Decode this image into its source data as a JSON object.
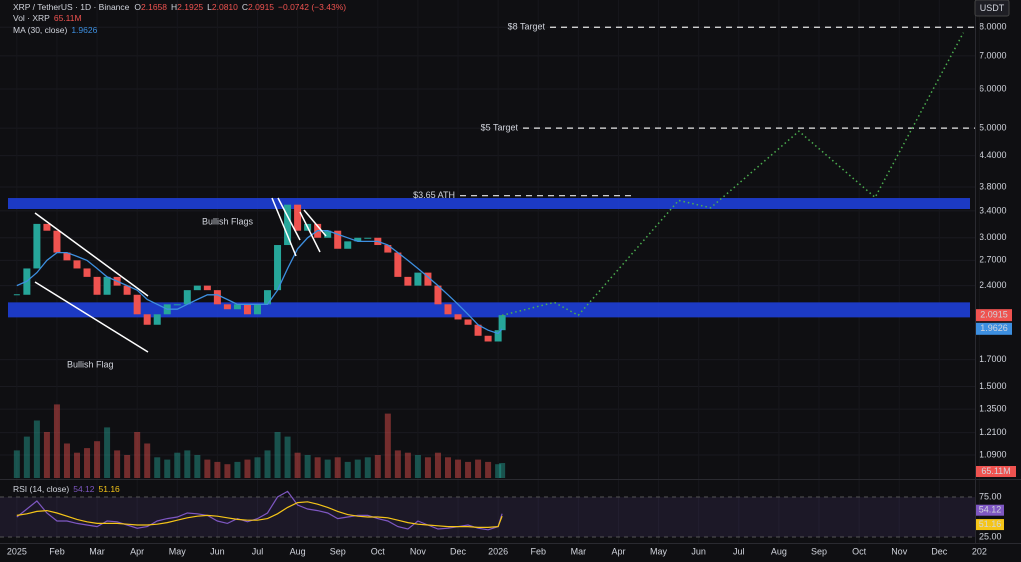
{
  "chart_data": {
    "type": "candlestick",
    "legend": {
      "symbol": "XRP / TetherUS · 1D · Binance",
      "ohlc": [
        {
          "key": "O",
          "text": "2.1658"
        },
        {
          "key": "H",
          "text": "2.1925"
        },
        {
          "key": "L",
          "text": "2.0810"
        },
        {
          "key": "C",
          "text": "2.0915"
        }
      ],
      "change": "−0.0742 (−3.43%)",
      "volume_label": "Vol · XRP",
      "volume_text": "65.11M",
      "ma_label": "MA (30, close)",
      "rsi_label": "RSI (14, close)"
    },
    "currency": "USDT",
    "yscale": "log",
    "ylim": [
      1,
      9
    ],
    "yticks": [
      {
        "value": 1.09,
        "label": "1.0900"
      },
      {
        "value": 1.21,
        "label": "1.2100"
      },
      {
        "value": 1.35,
        "label": "1.3500"
      },
      {
        "value": 1.5,
        "label": "1.5000"
      },
      {
        "value": 1.7,
        "label": "1.7000"
      },
      {
        "value": 2.4,
        "label": "2.4000"
      },
      {
        "value": 2.7,
        "label": "2.7000"
      },
      {
        "value": 3.0,
        "label": "3.0000"
      },
      {
        "value": 3.4,
        "label": "3.4000"
      },
      {
        "value": 3.8,
        "label": "3.8000"
      },
      {
        "value": 4.4,
        "label": "4.4000"
      },
      {
        "value": 5,
        "label": "5.0000"
      },
      {
        "value": 6,
        "label": "6.0000"
      },
      {
        "value": 7,
        "label": "7.0000"
      },
      {
        "value": 8,
        "label": "8.0000"
      }
    ],
    "xlim": [
      -0.42,
      23.89
    ],
    "xticks": [
      {
        "value": 0,
        "label": "2025"
      },
      {
        "value": 1,
        "label": "Feb"
      },
      {
        "value": 2,
        "label": "Mar"
      },
      {
        "value": 3,
        "label": "Apr"
      },
      {
        "value": 4,
        "label": "May"
      },
      {
        "value": 5,
        "label": "Jun"
      },
      {
        "value": 6,
        "label": "Jul"
      },
      {
        "value": 7,
        "label": "Aug"
      },
      {
        "value": 8,
        "label": "Sep"
      },
      {
        "value": 9,
        "label": "Oct"
      },
      {
        "value": 10,
        "label": "Nov"
      },
      {
        "value": 11,
        "label": "Dec"
      },
      {
        "value": 12,
        "label": "2026"
      },
      {
        "value": 13,
        "label": "Feb"
      },
      {
        "value": 14,
        "label": "Mar"
      },
      {
        "value": 15,
        "label": "Apr"
      },
      {
        "value": 16,
        "label": "May"
      },
      {
        "value": 17,
        "label": "Jun"
      },
      {
        "value": 18,
        "label": "Jul"
      },
      {
        "value": 19,
        "label": "Aug"
      },
      {
        "value": 20,
        "label": "Sep"
      },
      {
        "value": 21,
        "label": "Oct"
      },
      {
        "value": 22,
        "label": "Nov"
      },
      {
        "value": 23,
        "label": "Dec"
      },
      {
        "value": 24,
        "label": "202"
      }
    ],
    "x": [
      0,
      0.25,
      0.5,
      0.75,
      1,
      1.25,
      1.5,
      1.75,
      2,
      2.25,
      2.5,
      2.75,
      3,
      3.25,
      3.5,
      3.75,
      4,
      4.25,
      4.5,
      4.75,
      5,
      5.25,
      5.5,
      5.75,
      6,
      6.25,
      6.5,
      6.75,
      7,
      7.25,
      7.5,
      7.75,
      8,
      8.25,
      8.5,
      8.75,
      9,
      9.25,
      9.5,
      9.75,
      10,
      10.25,
      10.5,
      10.75,
      11,
      11.25,
      11.5,
      11.75,
      12,
      12.1
    ],
    "close": [
      2.3,
      2.6,
      3.2,
      3.1,
      2.8,
      2.7,
      2.6,
      2.5,
      2.3,
      2.5,
      2.4,
      2.3,
      2.1,
      2.0,
      2.1,
      2.2,
      2.2,
      2.35,
      2.4,
      2.35,
      2.2,
      2.15,
      2.2,
      2.1,
      2.2,
      2.35,
      2.9,
      3.5,
      3.1,
      3.2,
      3.0,
      3.1,
      2.85,
      2.95,
      3.0,
      3.0,
      2.9,
      2.8,
      2.5,
      2.4,
      2.55,
      2.4,
      2.2,
      2.1,
      2.05,
      2.0,
      1.9,
      1.85,
      1.95,
      2.0915
    ],
    "ma": [
      2.4,
      2.45,
      2.55,
      2.7,
      2.8,
      2.8,
      2.75,
      2.7,
      2.6,
      2.5,
      2.45,
      2.4,
      2.35,
      2.25,
      2.2,
      2.15,
      2.15,
      2.2,
      2.25,
      2.3,
      2.3,
      2.25,
      2.2,
      2.2,
      2.2,
      2.2,
      2.35,
      2.6,
      2.85,
      3.0,
      3.1,
      3.1,
      3.05,
      3.0,
      2.95,
      2.95,
      2.95,
      2.9,
      2.8,
      2.7,
      2.6,
      2.5,
      2.4,
      2.3,
      2.2,
      2.1,
      2.0,
      1.95,
      1.92,
      1.9626
    ],
    "volume": [
      120,
      180,
      250,
      200,
      320,
      150,
      110,
      130,
      160,
      220,
      120,
      100,
      200,
      150,
      90,
      80,
      110,
      120,
      100,
      80,
      70,
      60,
      70,
      80,
      90,
      120,
      200,
      180,
      110,
      100,
      90,
      80,
      90,
      70,
      80,
      90,
      100,
      280,
      120,
      110,
      100,
      90,
      110,
      90,
      80,
      70,
      80,
      70,
      60,
      65.11
    ],
    "rsi": [
      50,
      60,
      70,
      55,
      45,
      45,
      42,
      40,
      38,
      45,
      44,
      40,
      36,
      38,
      45,
      48,
      50,
      55,
      54,
      52,
      45,
      42,
      48,
      44,
      48,
      55,
      75,
      82,
      65,
      60,
      58,
      55,
      48,
      50,
      52,
      52,
      48,
      45,
      38,
      35,
      45,
      40,
      35,
      36,
      38,
      40,
      36,
      34,
      38,
      54.12
    ],
    "rsi_ma": [
      52,
      54,
      57,
      58,
      55,
      51,
      47,
      44,
      42,
      42,
      42,
      41,
      40,
      40,
      41,
      43,
      46,
      49,
      51,
      52,
      51,
      49,
      47,
      46,
      46,
      48,
      54,
      62,
      68,
      69,
      66,
      62,
      57,
      53,
      51,
      50,
      50,
      49,
      46,
      43,
      41,
      40,
      39,
      38,
      38,
      38,
      37,
      37,
      38,
      51.16
    ],
    "rsi_ylim": [
      20,
      95
    ],
    "rsi_yticks": [
      {
        "value": 75,
        "label": "75.00"
      },
      {
        "value": 25,
        "label": "25.00"
      }
    ],
    "zones": [
      {
        "low": 3.43,
        "high": 3.61
      },
      {
        "low": 2.07,
        "high": 2.22
      }
    ],
    "targets": [
      {
        "label": "$8 Target",
        "value": 8
      },
      {
        "label": "$5 Target",
        "value": 5
      },
      {
        "label": "$3.65 ATH",
        "value": 3.65
      }
    ],
    "annotations": [
      "Bullish Flags",
      "Bullish Flag"
    ],
    "projection": {
      "x": [
        12.1,
        13.4,
        14.0,
        16.5,
        17.3,
        19.5,
        21.4,
        23.6
      ],
      "values": [
        2.09,
        2.22,
        2.09,
        3.57,
        3.45,
        4.93,
        3.62,
        7.8
      ]
    },
    "colors": {
      "up": "#26a69a",
      "down": "#ef5350",
      "ma": "#3d8fe0",
      "zone": "#1e3fd8",
      "projection": "#4caf50",
      "rsi": "#7e57c2",
      "rsi_ma": "#f5c518"
    }
  }
}
